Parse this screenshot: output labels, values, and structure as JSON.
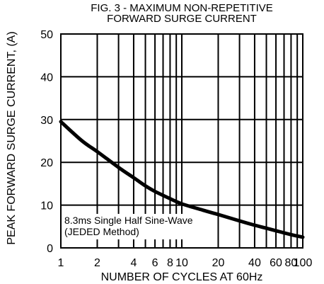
{
  "chart_data": {
    "type": "line",
    "title_line1": "FIG. 3 - MAXIMUM NON-REPETITIVE",
    "title_line2": "FORWARD SURGE CURRENT",
    "xlabel": "NUMBER OF CYCLES AT 60Hz",
    "ylabel": "PEAK FORWARD SURGE CURRENT, (A)",
    "x_scale": "log",
    "xlim": [
      1,
      100
    ],
    "ylim": [
      0,
      50
    ],
    "x_ticks": [
      {
        "value": 1,
        "label": "1"
      },
      {
        "value": 2,
        "label": "2"
      },
      {
        "value": 4,
        "label": "4"
      },
      {
        "value": 6,
        "label": "6"
      },
      {
        "value": 8,
        "label": "8"
      },
      {
        "value": 10,
        "label": "10"
      },
      {
        "value": 20,
        "label": "20"
      },
      {
        "value": 40,
        "label": "40"
      },
      {
        "value": 60,
        "label": "60"
      },
      {
        "value": 80,
        "label": "80"
      },
      {
        "value": 100,
        "label": "100"
      }
    ],
    "y_ticks": [
      {
        "value": 0,
        "label": "0"
      },
      {
        "value": 10,
        "label": "10"
      },
      {
        "value": 20,
        "label": "20"
      },
      {
        "value": 30,
        "label": "30"
      },
      {
        "value": 40,
        "label": "40"
      },
      {
        "value": 50,
        "label": "50"
      }
    ],
    "grid": true,
    "series": [
      {
        "x": [
          1,
          1.5,
          2,
          3,
          4,
          5,
          6,
          8,
          10,
          15,
          20,
          30,
          40,
          50,
          60,
          80,
          100
        ],
        "y": [
          29.5,
          25,
          22.5,
          18.8,
          16.4,
          14.5,
          13.2,
          11.5,
          10.3,
          8.8,
          7.8,
          6.3,
          5.3,
          4.6,
          4.0,
          3.1,
          2.5
        ]
      }
    ],
    "annotation_line1": "8.3ms Single Half Sine-Wave",
    "annotation_line2": "(JEDED Method)"
  }
}
